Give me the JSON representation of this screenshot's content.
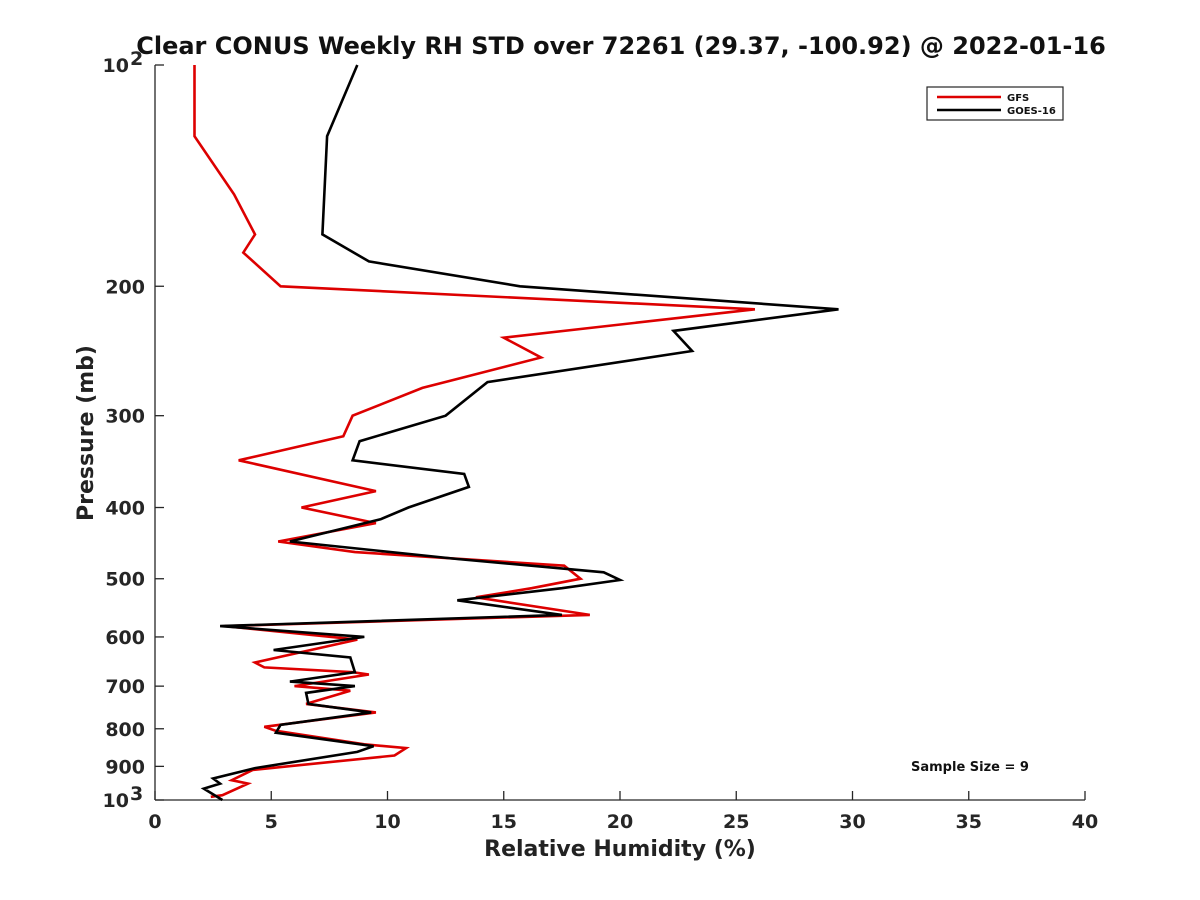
{
  "chart_data": {
    "type": "line",
    "title": "Clear CONUS Weekly RH STD over 72261 (29.37, -100.92) @ 2022-01-16",
    "xlabel": "Relative Humidity (%)",
    "ylabel": "Pressure (mb)",
    "xlim": [
      0,
      40
    ],
    "ylim": [
      1000,
      100
    ],
    "yscale": "log",
    "y_reversed": true,
    "x_ticks": [
      "0",
      "5",
      "10",
      "15",
      "20",
      "25",
      "30",
      "35",
      "40"
    ],
    "y_ticks": [
      {
        "value": 100,
        "label": "10",
        "exp": "2"
      },
      {
        "value": 200,
        "label": "200"
      },
      {
        "value": 300,
        "label": "300"
      },
      {
        "value": 400,
        "label": "400"
      },
      {
        "value": 500,
        "label": "500"
      },
      {
        "value": 600,
        "label": "600"
      },
      {
        "value": 700,
        "label": "700"
      },
      {
        "value": 800,
        "label": "800"
      },
      {
        "value": 900,
        "label": "900"
      },
      {
        "value": 1000,
        "label": "10",
        "exp": "3"
      }
    ],
    "legend_position": "top-right",
    "grid": false,
    "annotation": "Sample Size = 9",
    "series": [
      {
        "name": "GFS",
        "color": "#dd0000",
        "points": [
          [
            1.7,
            100
          ],
          [
            1.7,
            125
          ],
          [
            3.4,
            150
          ],
          [
            4.3,
            170
          ],
          [
            3.8,
            180
          ],
          [
            5.4,
            200
          ],
          [
            25.8,
            215
          ],
          [
            15.0,
            235
          ],
          [
            16.6,
            250
          ],
          [
            11.5,
            275
          ],
          [
            8.5,
            300
          ],
          [
            8.1,
            320
          ],
          [
            3.6,
            345
          ],
          [
            9.5,
            380
          ],
          [
            6.3,
            400
          ],
          [
            9.5,
            420
          ],
          [
            5.3,
            445
          ],
          [
            8.6,
            460
          ],
          [
            17.6,
            480
          ],
          [
            18.3,
            500
          ],
          [
            16.2,
            515
          ],
          [
            13.8,
            530
          ],
          [
            18.7,
            560
          ],
          [
            3.0,
            580
          ],
          [
            8.7,
            605
          ],
          [
            4.3,
            650
          ],
          [
            4.7,
            660
          ],
          [
            8.5,
            670
          ],
          [
            9.2,
            675
          ],
          [
            6.0,
            700
          ],
          [
            8.4,
            710
          ],
          [
            6.5,
            740
          ],
          [
            9.5,
            760
          ],
          [
            4.7,
            795
          ],
          [
            5.2,
            805
          ],
          [
            9.0,
            840
          ],
          [
            10.8,
            850
          ],
          [
            10.3,
            870
          ],
          [
            4.2,
            910
          ],
          [
            3.3,
            940
          ],
          [
            4.0,
            950
          ],
          [
            2.9,
            985
          ],
          [
            2.4,
            990
          ]
        ]
      },
      {
        "name": "GOES-16",
        "color": "#000000",
        "points": [
          [
            8.7,
            100
          ],
          [
            7.4,
            125
          ],
          [
            7.2,
            170
          ],
          [
            9.2,
            185
          ],
          [
            15.7,
            200
          ],
          [
            29.4,
            215
          ],
          [
            22.3,
            230
          ],
          [
            23.1,
            245
          ],
          [
            14.3,
            270
          ],
          [
            12.5,
            300
          ],
          [
            8.8,
            325
          ],
          [
            8.5,
            345
          ],
          [
            13.3,
            360
          ],
          [
            13.5,
            375
          ],
          [
            10.9,
            400
          ],
          [
            9.7,
            415
          ],
          [
            5.8,
            445
          ],
          [
            13.0,
            470
          ],
          [
            19.3,
            490
          ],
          [
            20.0,
            502
          ],
          [
            17.5,
            515
          ],
          [
            13.0,
            535
          ],
          [
            17.5,
            560
          ],
          [
            2.8,
            580
          ],
          [
            9.0,
            600
          ],
          [
            5.1,
            625
          ],
          [
            8.4,
            640
          ],
          [
            8.6,
            670
          ],
          [
            5.8,
            690
          ],
          [
            8.6,
            700
          ],
          [
            6.5,
            715
          ],
          [
            6.6,
            740
          ],
          [
            9.3,
            760
          ],
          [
            5.4,
            790
          ],
          [
            5.2,
            810
          ],
          [
            9.4,
            845
          ],
          [
            8.7,
            860
          ],
          [
            4.3,
            905
          ],
          [
            2.5,
            935
          ],
          [
            2.8,
            950
          ],
          [
            2.1,
            965
          ],
          [
            2.9,
            1000
          ]
        ]
      }
    ]
  }
}
